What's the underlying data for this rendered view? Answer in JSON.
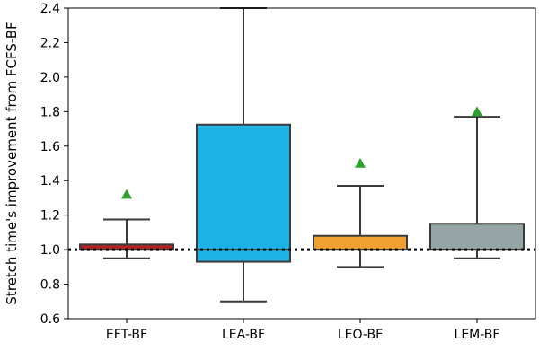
{
  "chart_data": {
    "type": "box",
    "ylabel": "Stretch time's improvement from FCFS-BF",
    "xlabel": "",
    "ylim": [
      0.6,
      2.4
    ],
    "yticks": [
      0.6,
      0.8,
      1.0,
      1.2,
      1.4,
      1.6,
      1.8,
      2.0,
      2.2,
      2.4
    ],
    "ytick_labels": [
      "0.6",
      "0.8",
      "1.0",
      "1.2",
      "1.4",
      "1.6",
      "1.8",
      "2.0",
      "2.2",
      "2.4"
    ],
    "grid": false,
    "reference_line": {
      "y": 1.0,
      "style": "dotted",
      "color": "#000000"
    },
    "categories": [
      "EFT-BF",
      "LEA-BF",
      "LEO-BF",
      "LEM-BF"
    ],
    "boxes": [
      {
        "name": "EFT-BF",
        "whisker_low": 0.95,
        "q1": 1.0,
        "median": 1.0,
        "q3": 1.03,
        "whisker_high": 1.175,
        "mean": 1.32,
        "color": "#b22222"
      },
      {
        "name": "LEA-BF",
        "whisker_low": 0.7,
        "q1": 0.93,
        "median": 1.0,
        "q3": 1.725,
        "whisker_high": 2.4,
        "mean": null,
        "color": "#1eb3e6"
      },
      {
        "name": "LEO-BF",
        "whisker_low": 0.9,
        "q1": 1.0,
        "median": 1.0,
        "q3": 1.08,
        "whisker_high": 1.37,
        "mean": 1.5,
        "color": "#f0a030"
      },
      {
        "name": "LEM-BF",
        "whisker_low": 0.95,
        "q1": 1.0,
        "median": 1.0,
        "q3": 1.15,
        "whisker_high": 1.77,
        "mean": 1.8,
        "color": "#95a5a6"
      }
    ],
    "mean_marker": {
      "shape": "triangle",
      "color": "#2ca02c"
    },
    "box_edge_color": "#3a3a3a"
  }
}
